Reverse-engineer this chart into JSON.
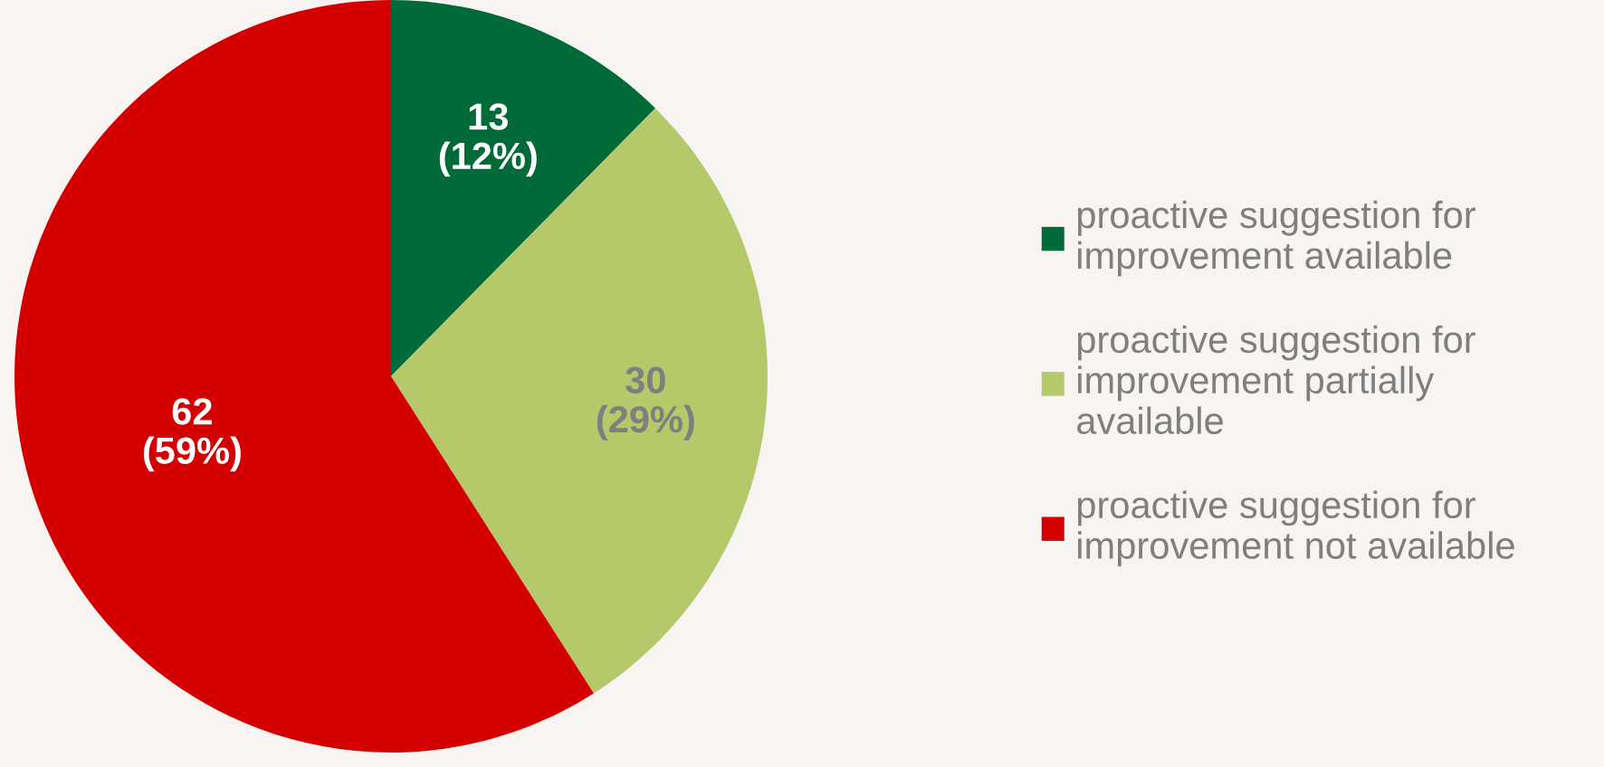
{
  "chart_data": {
    "type": "pie",
    "categories": [
      "proactive suggestion for\nimprovement available",
      "proactive suggestion for\nimprovement partially\navailable",
      "proactive suggestion for\nimprovement not available"
    ],
    "values": [
      13,
      30,
      62
    ],
    "colors": [
      "#006a39",
      "#b6c96a",
      "#d40000"
    ],
    "value_labels": [
      "13\n(12%)",
      "30\n(29%)",
      "62\n(59%)"
    ],
    "legend": "right"
  }
}
